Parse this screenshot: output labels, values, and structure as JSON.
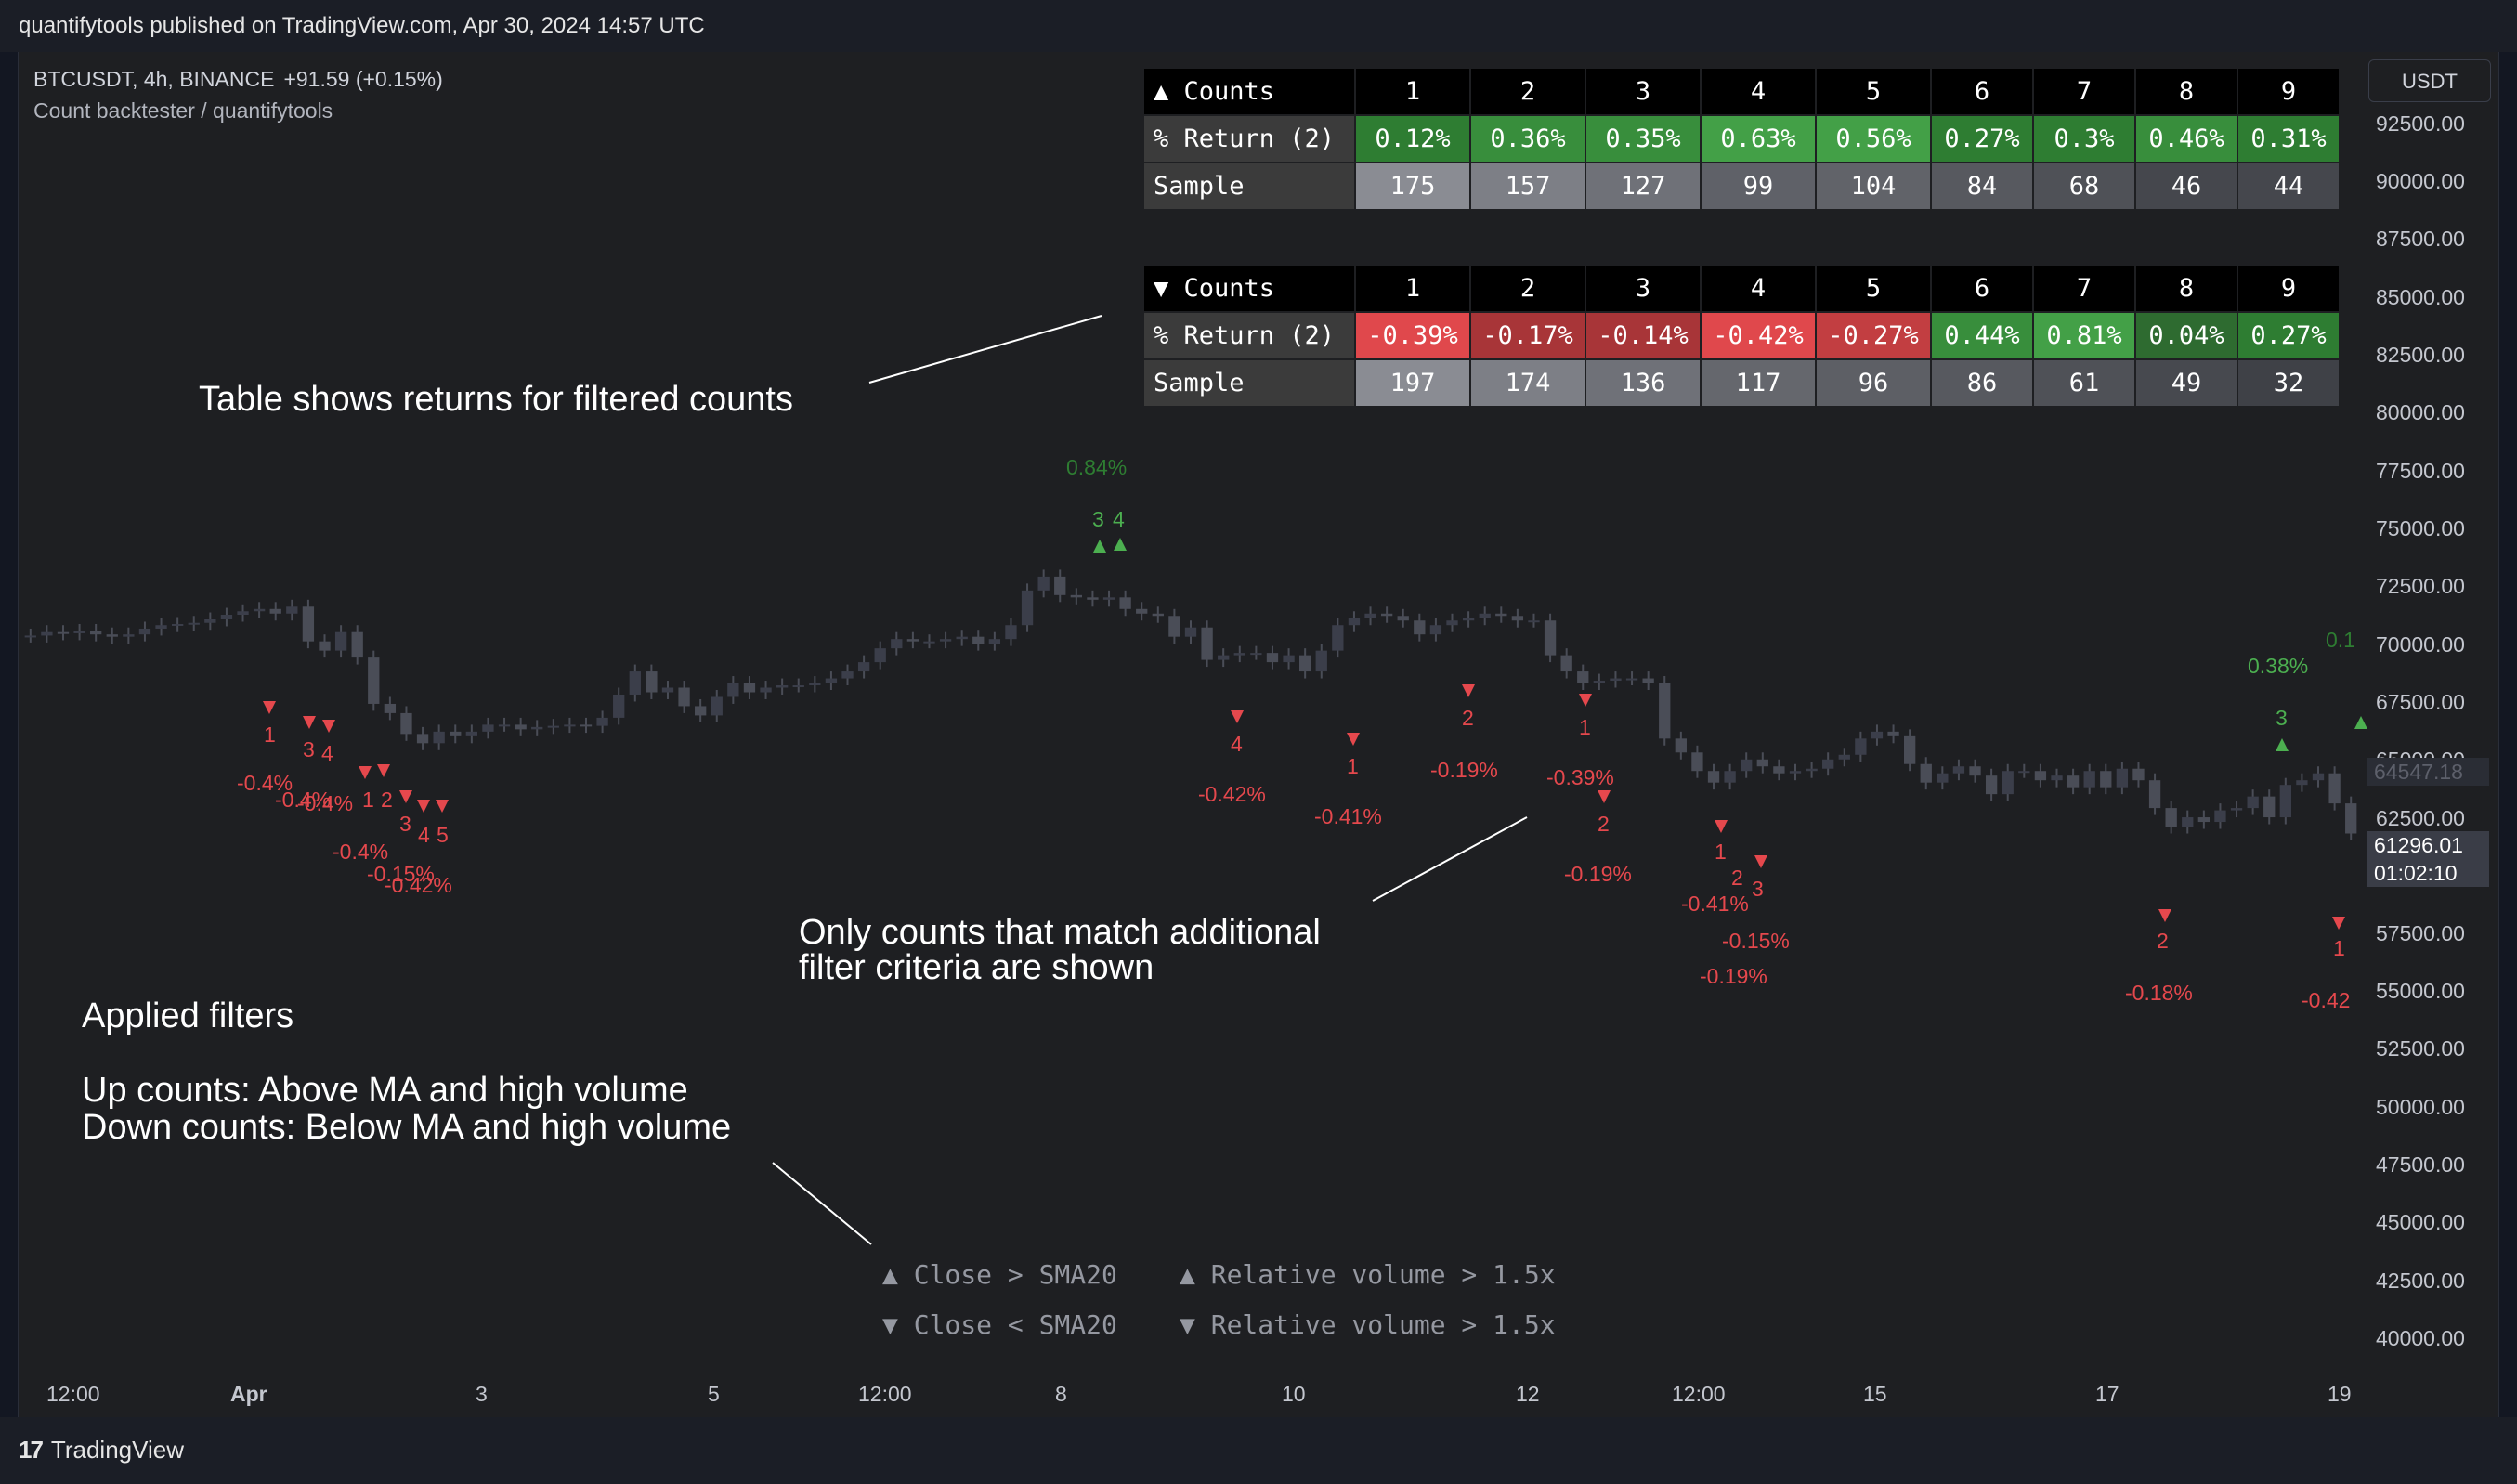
{
  "header": {
    "published": "quantifytools published on TradingView.com, Apr 30, 2024 14:57 UTC"
  },
  "symbol": {
    "name": "BTCUSDT, 4h, BINANCE",
    "change": "+91.59 (+0.15%)"
  },
  "indicator": {
    "name": "Count backtester / quantifytools"
  },
  "currency": "USDT",
  "footer": {
    "brand": "TradingView"
  },
  "price_axis": [
    "92500.00",
    "90000.00",
    "87500.00",
    "85000.00",
    "82500.00",
    "80000.00",
    "77500.00",
    "75000.00",
    "72500.00",
    "70000.00",
    "67500.00",
    "65000.00",
    "64547.18",
    "62500.00",
    "61296.01",
    "01:02:10",
    "57500.00",
    "55000.00",
    "52500.00",
    "50000.00",
    "47500.00",
    "45000.00",
    "42500.00",
    "40000.00"
  ],
  "time_axis": [
    "12:00",
    "Apr",
    "3",
    "5",
    "12:00",
    "8",
    "10",
    "12",
    "12:00",
    "15",
    "17",
    "19"
  ],
  "up_table": {
    "header": "▲ Counts",
    "row1": "% Return (2)",
    "row2": "Sample",
    "counts": [
      "1",
      "2",
      "3",
      "4",
      "5",
      "6",
      "7",
      "8",
      "9"
    ],
    "returns": [
      "0.12%",
      "0.36%",
      "0.35%",
      "0.63%",
      "0.56%",
      "0.27%",
      "0.3%",
      "0.46%",
      "0.31%"
    ],
    "samples": [
      "175",
      "157",
      "127",
      "99",
      "104",
      "84",
      "68",
      "46",
      "44"
    ]
  },
  "down_table": {
    "header": "▼ Counts",
    "row1": "% Return (2)",
    "row2": "Sample",
    "counts": [
      "1",
      "2",
      "3",
      "4",
      "5",
      "6",
      "7",
      "8",
      "9"
    ],
    "returns": [
      "-0.39%",
      "-0.17%",
      "-0.14%",
      "-0.42%",
      "-0.27%",
      "0.44%",
      "0.81%",
      "0.04%",
      "0.27%"
    ],
    "samples": [
      "197",
      "174",
      "136",
      "117",
      "96",
      "86",
      "61",
      "49",
      "32"
    ]
  },
  "annotations": {
    "table_note": "Table shows returns for filtered counts",
    "filter_note_1": "Only counts that match additional",
    "filter_note_2": "filter criteria are shown",
    "applied_title": "Applied filters",
    "applied_up": "Up counts: Above MA and high volume",
    "applied_down": "Down counts: Below MA and high volume"
  },
  "filters": {
    "up_ma": "▲ Close > SMA20",
    "up_vol": "▲ Relative volume > 1.5x",
    "down_ma": "▼ Close < SMA20",
    "down_vol": "▼ Relative volume > 1.5x"
  },
  "colors": {
    "bg": "#1e1f22",
    "up_candle": "#3b3e4a",
    "down_candle": "#4a4d57",
    "red_label": "#e5484d",
    "green_label": "#4caf50"
  },
  "chart_labels": {
    "red_returns": [
      "-0.4%",
      "-0.4%",
      "-0.4%",
      "-0.42%",
      "-0.41%",
      "-0.19%",
      "-0.39%",
      "-0.19%",
      "-0.41%",
      "-0.15%",
      "-0.19%",
      "-0.18%",
      "-0.42",
      "-0.4%",
      "-0.15%",
      "-0.42%"
    ],
    "red_counts": [
      "1",
      "3",
      "4",
      "1",
      "2",
      "3",
      "4",
      "5",
      "4",
      "1",
      "2",
      "1",
      "2",
      "1",
      "3",
      "2",
      "1",
      "2"
    ],
    "green_returns": [
      "0.84%",
      "0.38%",
      "0.1"
    ],
    "green_counts": [
      "3",
      "4",
      "3"
    ]
  },
  "chart_data": {
    "type": "candlestick",
    "title": "BTCUSDT, 4h, BINANCE",
    "ylim": [
      39000,
      94000
    ],
    "close": [
      69850,
      70000,
      69950,
      70050,
      69900,
      69800,
      69900,
      70150,
      70300,
      70350,
      70400,
      70550,
      70750,
      70900,
      71000,
      70800,
      71100,
      69600,
      69200,
      70000,
      68900,
      66900,
      66500,
      65600,
      65200,
      65700,
      65500,
      65700,
      66000,
      66000,
      65800,
      65900,
      65950,
      66000,
      65950,
      66300,
      67300,
      68300,
      67400,
      67600,
      66800,
      66400,
      67200,
      67800,
      67400,
      67600,
      67700,
      67700,
      67800,
      68000,
      68300,
      68700,
      69300,
      69700,
      69600,
      69600,
      69700,
      69800,
      69500,
      69700,
      70300,
      71800,
      72400,
      71600,
      71500,
      71400,
      71500,
      71000,
      70800,
      70700,
      69800,
      70200,
      68800,
      69000,
      69100,
      69100,
      68700,
      69000,
      68300,
      69200,
      70300,
      70600,
      70800,
      70700,
      70500,
      69900,
      70300,
      70500,
      70600,
      70800,
      70700,
      70500,
      70500,
      69000,
      68300,
      67800,
      67900,
      68000,
      68000,
      67800,
      65400,
      64800,
      64000,
      63500,
      64000,
      64500,
      64200,
      63900,
      64000,
      64100,
      64500,
      64700,
      65400,
      65700,
      65500,
      64300,
      63500,
      63900,
      64200,
      63800,
      63000,
      64000,
      64000,
      63600,
      63800,
      63300,
      64000,
      63300,
      64100,
      63600,
      62400,
      61600,
      62000,
      61800,
      62300,
      62400,
      62900,
      62000,
      63400,
      63600,
      63900,
      62600,
      61300
    ]
  }
}
